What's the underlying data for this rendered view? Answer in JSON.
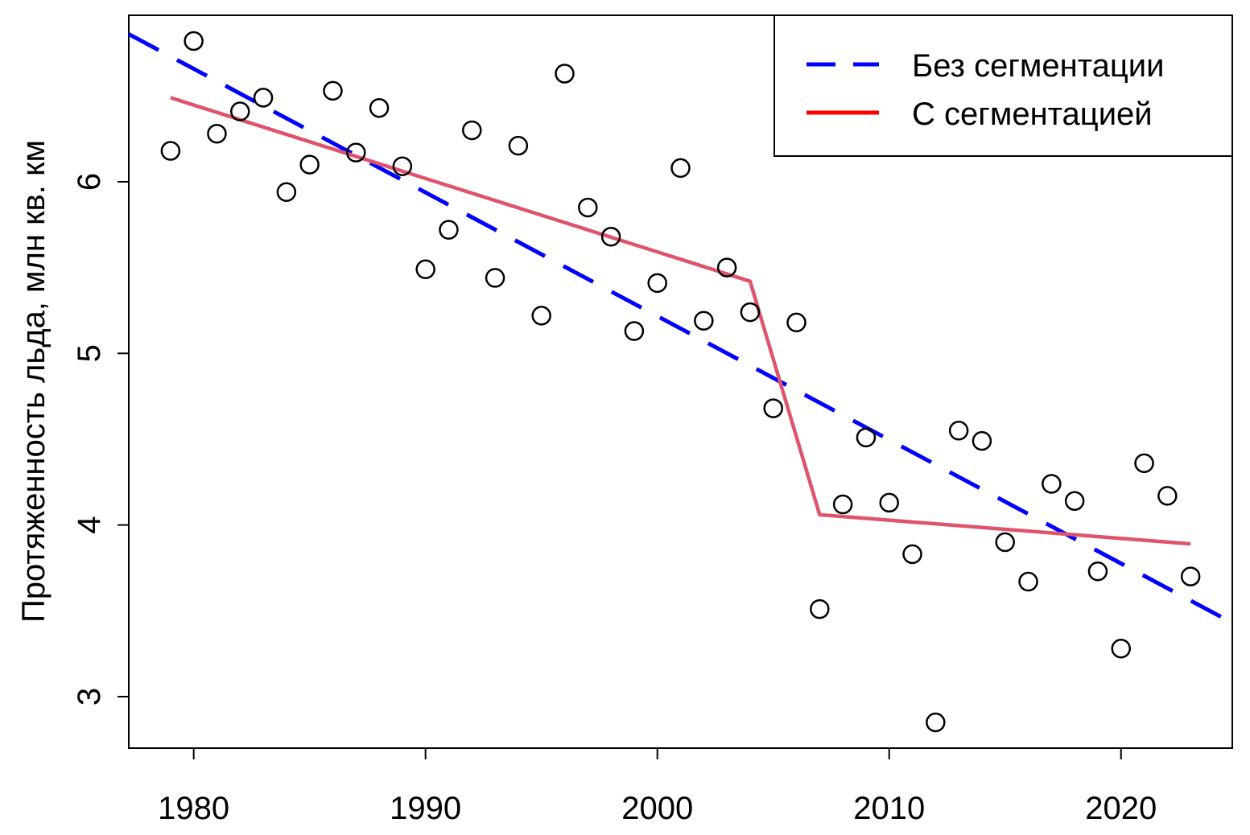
{
  "chart_data": {
    "type": "scatter",
    "title": "",
    "xlabel": "",
    "ylabel": "Протяженность льда, млн кв. км",
    "xlim": [
      1977.2,
      2024.8
    ],
    "ylim": [
      2.7,
      6.97
    ],
    "x_ticks": [
      1980,
      1990,
      2000,
      2010,
      2020
    ],
    "y_ticks": [
      3,
      4,
      5,
      6
    ],
    "grid": false,
    "legend_position": "top-right",
    "colors": {
      "points": "#000000",
      "linear_fit": "#0000FF",
      "segmented_fit": "#DF536B"
    },
    "points": {
      "x": [
        1979,
        1980,
        1981,
        1982,
        1983,
        1984,
        1985,
        1986,
        1987,
        1988,
        1989,
        1990,
        1991,
        1992,
        1993,
        1994,
        1995,
        1996,
        1997,
        1998,
        1999,
        2000,
        2001,
        2002,
        2003,
        2004,
        2005,
        2006,
        2007,
        2008,
        2009,
        2010,
        2011,
        2012,
        2013,
        2014,
        2015,
        2016,
        2017,
        2018,
        2019,
        2020,
        2021,
        2022,
        2023
      ],
      "y": [
        6.18,
        6.82,
        6.28,
        6.41,
        6.49,
        5.94,
        6.1,
        6.53,
        6.17,
        6.43,
        6.09,
        5.49,
        5.72,
        6.3,
        5.44,
        6.21,
        5.22,
        6.63,
        5.85,
        5.68,
        5.13,
        5.41,
        6.08,
        5.19,
        5.5,
        5.24,
        4.68,
        5.18,
        3.51,
        4.12,
        4.51,
        4.13,
        3.83,
        2.85,
        4.55,
        4.49,
        3.9,
        3.67,
        4.24,
        4.14,
        3.73,
        3.28,
        4.36,
        4.17,
        3.7
      ]
    },
    "series": [
      {
        "name": "Без сегментации",
        "style": "dashed",
        "x": [
          1977.2,
          2024.8
        ],
        "y": [
          6.86,
          3.43
        ]
      },
      {
        "name": "С сегментацией",
        "style": "solid",
        "x": [
          1979,
          2004,
          2007,
          2023
        ],
        "y": [
          6.49,
          5.42,
          4.06,
          3.89
        ]
      }
    ]
  }
}
